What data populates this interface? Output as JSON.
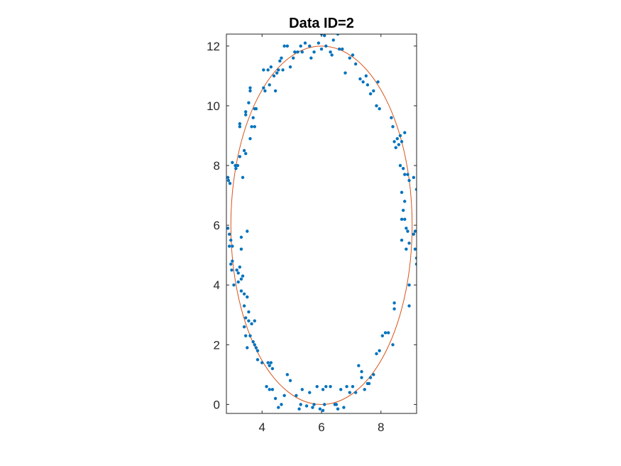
{
  "chart_data": {
    "type": "scatter",
    "title": "Data ID=2",
    "xlabel": "",
    "ylabel": "",
    "xlim": [
      2.8,
      9.2
    ],
    "ylim": [
      -0.3,
      12.4
    ],
    "x_ticks": [
      4,
      6,
      8
    ],
    "x_tick_labels": [
      "4",
      "6",
      "8"
    ],
    "y_ticks": [
      0,
      2,
      4,
      6,
      8,
      10,
      12
    ],
    "y_tick_labels": [
      "0",
      "2",
      "4",
      "6",
      "8",
      "10",
      "12"
    ],
    "grid": false,
    "legend": "none",
    "colors": {
      "points": "#0072BD",
      "ellipse": "#D95319",
      "axes": "#262626"
    },
    "series": [
      {
        "type": "scatter",
        "points": [
          [
            2.85,
            7.6
          ],
          [
            2.87,
            7.5
          ],
          [
            2.92,
            7.4
          ],
          [
            3.0,
            8.1
          ],
          [
            3.1,
            8.0
          ],
          [
            3.12,
            7.9
          ],
          [
            3.18,
            8.0
          ],
          [
            3.25,
            8.3
          ],
          [
            3.35,
            7.6
          ],
          [
            3.4,
            8.5
          ],
          [
            3.45,
            8.4
          ],
          [
            3.25,
            9.4
          ],
          [
            3.25,
            9.3
          ],
          [
            3.45,
            9.8
          ],
          [
            3.45,
            9.7
          ],
          [
            3.55,
            10.1
          ],
          [
            3.6,
            10.5
          ],
          [
            3.6,
            10.6
          ],
          [
            3.7,
            9.6
          ],
          [
            3.75,
            9.9
          ],
          [
            3.8,
            9.9
          ],
          [
            3.65,
            9.3
          ],
          [
            3.75,
            9.3
          ],
          [
            3.6,
            8.9
          ],
          [
            4.05,
            11.2
          ],
          [
            4.05,
            10.6
          ],
          [
            4.1,
            10.5
          ],
          [
            4.2,
            11.2
          ],
          [
            4.25,
            10.7
          ],
          [
            4.3,
            11.3
          ],
          [
            4.4,
            11.0
          ],
          [
            4.45,
            10.5
          ],
          [
            4.5,
            11.1
          ],
          [
            4.55,
            11.2
          ],
          [
            4.6,
            11.5
          ],
          [
            4.65,
            11.6
          ],
          [
            4.7,
            11.2
          ],
          [
            4.75,
            12.0
          ],
          [
            4.85,
            12.0
          ],
          [
            4.95,
            11.3
          ],
          [
            5.05,
            11.6
          ],
          [
            5.1,
            11.8
          ],
          [
            5.2,
            11.8
          ],
          [
            5.3,
            12.0
          ],
          [
            5.35,
            11.8
          ],
          [
            5.45,
            12.1
          ],
          [
            5.6,
            12.0
          ],
          [
            5.65,
            11.6
          ],
          [
            5.75,
            11.8
          ],
          [
            5.9,
            12.1
          ],
          [
            6.0,
            12.4
          ],
          [
            6.1,
            12.35
          ],
          [
            6.0,
            11.9
          ],
          [
            6.15,
            12.0
          ],
          [
            6.3,
            11.8
          ],
          [
            6.35,
            11.7
          ],
          [
            6.4,
            12.2
          ],
          [
            6.55,
            12.4
          ],
          [
            6.6,
            11.9
          ],
          [
            6.7,
            11.9
          ],
          [
            6.8,
            11.1
          ],
          [
            6.95,
            11.6
          ],
          [
            7.05,
            11.7
          ],
          [
            7.15,
            11.4
          ],
          [
            7.3,
            10.9
          ],
          [
            7.4,
            10.8
          ],
          [
            7.5,
            11.0
          ],
          [
            7.55,
            10.7
          ],
          [
            7.65,
            10.4
          ],
          [
            7.75,
            10.5
          ],
          [
            7.85,
            10.0
          ],
          [
            7.9,
            10.8
          ],
          [
            7.95,
            9.9
          ],
          [
            8.35,
            9.6
          ],
          [
            8.4,
            9.3
          ],
          [
            8.45,
            8.8
          ],
          [
            8.55,
            8.9
          ],
          [
            8.6,
            8.7
          ],
          [
            8.65,
            9.0
          ],
          [
            8.7,
            8.8
          ],
          [
            8.8,
            9.1
          ],
          [
            8.5,
            8.6
          ],
          [
            8.65,
            8.0
          ],
          [
            8.75,
            7.9
          ],
          [
            8.8,
            7.7
          ],
          [
            8.9,
            7.7
          ],
          [
            8.95,
            7.5
          ],
          [
            9.1,
            7.6
          ],
          [
            9.2,
            7.2
          ],
          [
            8.7,
            7.1
          ],
          [
            8.8,
            6.8
          ],
          [
            8.75,
            6.5
          ],
          [
            8.7,
            6.2
          ],
          [
            8.8,
            6.2
          ],
          [
            8.85,
            5.9
          ],
          [
            8.9,
            5.8
          ],
          [
            8.95,
            5.4
          ],
          [
            8.7,
            5.5
          ],
          [
            8.85,
            5.2
          ],
          [
            9.1,
            5.7
          ],
          [
            9.15,
            5.8
          ],
          [
            9.15,
            5.2
          ],
          [
            9.2,
            4.9
          ],
          [
            9.2,
            4.7
          ],
          [
            8.95,
            4.0
          ],
          [
            8.95,
            3.3
          ],
          [
            8.45,
            3.4
          ],
          [
            8.45,
            3.2
          ],
          [
            8.4,
            2.0
          ],
          [
            8.25,
            2.4
          ],
          [
            8.15,
            2.4
          ],
          [
            8.05,
            2.3
          ],
          [
            7.95,
            1.8
          ],
          [
            7.85,
            1.7
          ],
          [
            7.75,
            1.0
          ],
          [
            7.65,
            0.9
          ],
          [
            7.6,
            0.7
          ],
          [
            7.55,
            0.7
          ],
          [
            7.45,
            0.5
          ],
          [
            7.35,
            1.1
          ],
          [
            7.35,
            0.9
          ],
          [
            7.25,
            1.3
          ],
          [
            7.15,
            0.4
          ],
          [
            7.05,
            0.6
          ],
          [
            6.95,
            0.4
          ],
          [
            6.85,
            0.6
          ],
          [
            6.65,
            0.5
          ],
          [
            6.55,
            -0.15
          ],
          [
            6.75,
            -0.1
          ],
          [
            6.5,
            0.0
          ],
          [
            6.45,
            0.0
          ],
          [
            6.3,
            0.6
          ],
          [
            6.15,
            0.6
          ],
          [
            6.05,
            0.5
          ],
          [
            6.1,
            0.0
          ],
          [
            6.05,
            -0.2
          ],
          [
            5.95,
            -0.15
          ],
          [
            5.85,
            0.6
          ],
          [
            5.75,
            0.0
          ],
          [
            5.7,
            -0.1
          ],
          [
            5.6,
            0.4
          ],
          [
            5.5,
            -0.05
          ],
          [
            5.35,
            0.5
          ],
          [
            5.3,
            0.0
          ],
          [
            5.25,
            -0.15
          ],
          [
            5.15,
            0.3
          ],
          [
            4.95,
            0.8
          ],
          [
            4.85,
            1.0
          ],
          [
            4.75,
            0.3
          ],
          [
            4.65,
            0.0
          ],
          [
            4.55,
            -0.1
          ],
          [
            4.45,
            0.2
          ],
          [
            4.35,
            0.5
          ],
          [
            4.25,
            0.5
          ],
          [
            4.15,
            0.6
          ],
          [
            4.35,
            1.2
          ],
          [
            4.3,
            1.4
          ],
          [
            4.25,
            1.3
          ],
          [
            4.2,
            1.4
          ],
          [
            4.0,
            1.4
          ],
          [
            3.85,
            1.8
          ],
          [
            3.8,
            1.9
          ],
          [
            3.75,
            2.0
          ],
          [
            3.85,
            1.5
          ],
          [
            3.7,
            2.1
          ],
          [
            3.6,
            2.3
          ],
          [
            3.45,
            2.3
          ],
          [
            3.4,
            2.6
          ],
          [
            3.5,
            1.9
          ],
          [
            3.55,
            2.8
          ],
          [
            3.45,
            2.9
          ],
          [
            3.75,
            2.8
          ],
          [
            3.65,
            2.7
          ],
          [
            3.55,
            3.1
          ],
          [
            3.5,
            3.6
          ],
          [
            3.4,
            3.7
          ],
          [
            3.3,
            3.8
          ],
          [
            3.35,
            4.3
          ],
          [
            3.3,
            4.2
          ],
          [
            3.25,
            4.6
          ],
          [
            3.15,
            4.5
          ],
          [
            3.2,
            4.4
          ],
          [
            3.3,
            5.6
          ],
          [
            3.3,
            5.2
          ],
          [
            3.05,
            4.0
          ],
          [
            3.0,
            4.8
          ],
          [
            2.95,
            4.7
          ],
          [
            2.98,
            4.5
          ],
          [
            2.9,
            5.3
          ],
          [
            2.95,
            5.5
          ],
          [
            3.0,
            5.3
          ],
          [
            2.85,
            5.9
          ],
          [
            2.9,
            5.7
          ],
          [
            3.4,
            3.3
          ],
          [
            3.2,
            4.1
          ],
          [
            3.5,
            5.8
          ]
        ]
      },
      {
        "type": "ellipse",
        "center": [
          6.0,
          6.0
        ],
        "radius_x": 3.05,
        "radius_y": 6.0
      }
    ]
  }
}
